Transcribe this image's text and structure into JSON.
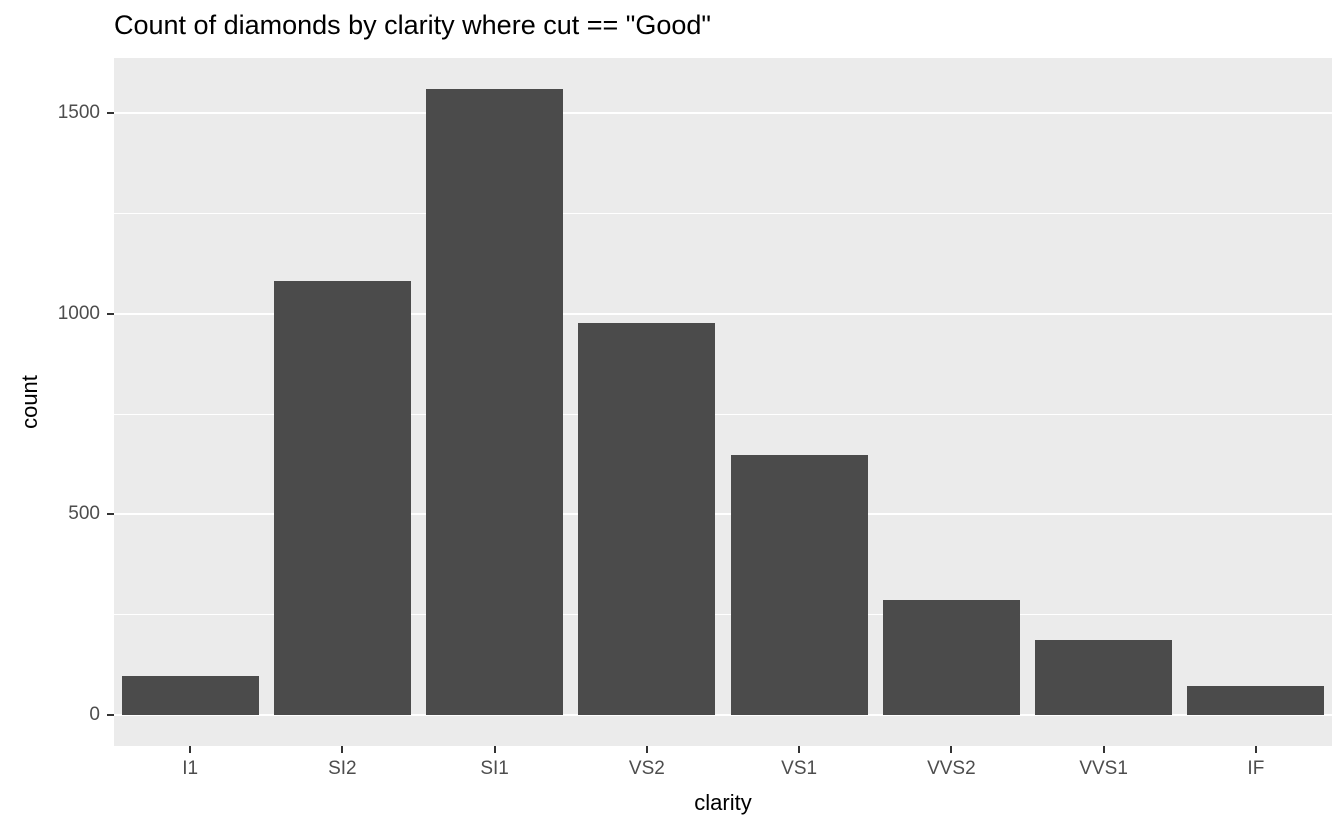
{
  "chart_data": {
    "type": "bar",
    "title": "Count of diamonds by clarity where cut == \"Good\"",
    "xlabel": "clarity",
    "ylabel": "count",
    "categories": [
      "I1",
      "SI2",
      "SI1",
      "VS2",
      "VS1",
      "VVS2",
      "VVS1",
      "IF"
    ],
    "values": [
      96,
      1081,
      1560,
      978,
      648,
      286,
      186,
      71
    ],
    "ylim": [
      -78,
      1638
    ],
    "y_ticks": [
      0,
      500,
      1000,
      1500
    ],
    "y_minor_ticks": [
      250,
      750,
      1250
    ],
    "bar_width_fraction": 0.9,
    "grid": true,
    "legend": "none",
    "style": {
      "panel_background": "#EBEBEB",
      "bar_fill": "#4B4B4B",
      "major_grid_color": "#FFFFFF",
      "minor_grid_color": "#FFFFFF",
      "tick_label_color": "#4D4D4D",
      "axis_title_color": "#000000",
      "tick_mark_color": "#333333"
    }
  }
}
